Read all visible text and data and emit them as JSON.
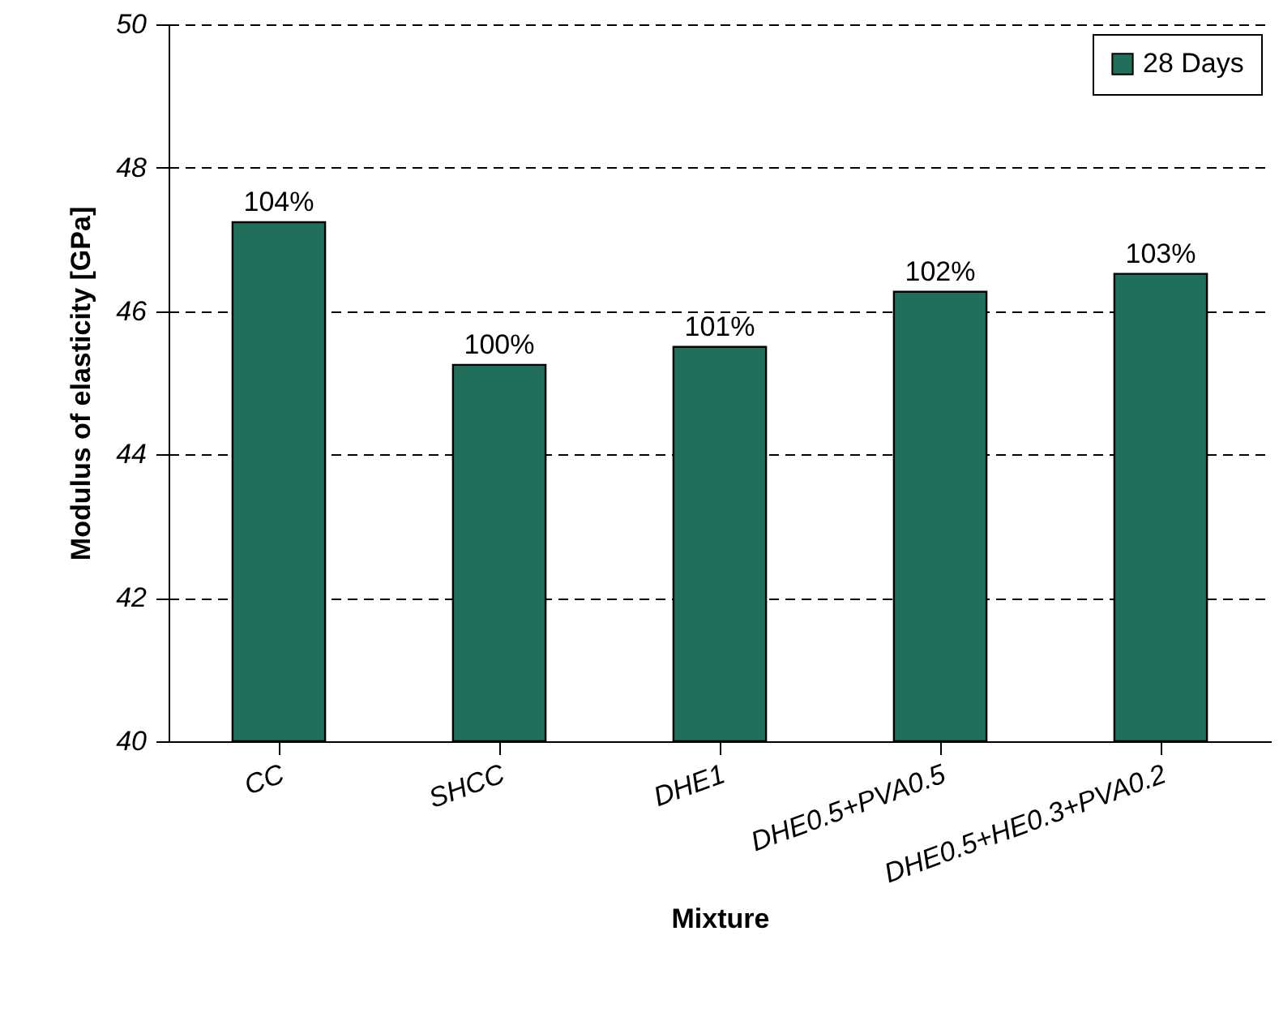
{
  "chart_data": {
    "type": "bar",
    "xlabel": "Mixture",
    "ylabel": "Modulus of elasticity [GPa]",
    "categories": [
      "CC",
      "SHCC",
      "DHE1",
      "DHE0.5+PVA0.5",
      "DHE0.5+HE0.3+PVA0.2"
    ],
    "series": [
      {
        "name": "28 Days",
        "color": "#1f6f5c",
        "values": [
          47.24,
          45.25,
          45.5,
          46.27,
          46.52
        ]
      }
    ],
    "annotations": [
      {
        "text": "104%",
        "x": "CC",
        "y": 47.24
      },
      {
        "text": "100%",
        "x": "SHCC",
        "y": 45.25
      },
      {
        "text": "101%",
        "x": "DHE1",
        "y": 45.5
      },
      {
        "text": "102%",
        "x": "DHE0.5+PVA0.5",
        "y": 46.27
      },
      {
        "text": "103%",
        "x": "DHE0.5+HE0.3+PVA0.2",
        "y": 46.52
      }
    ],
    "ylim": [
      40,
      50
    ],
    "yticks": [
      40,
      42,
      44,
      46,
      48,
      50
    ],
    "grid": "y",
    "legend": "top right"
  }
}
